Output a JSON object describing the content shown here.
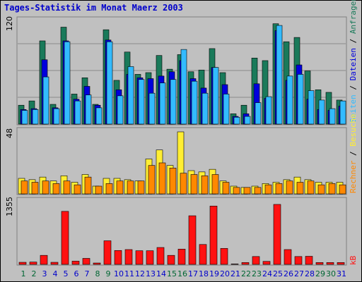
{
  "title": "Tages-Statistik im Monat Maerz 2003",
  "colors": {
    "anfragen": "#1a7a5a",
    "dateien": "#0000dd",
    "seiten": "#33bbff",
    "besuche": "#ffee33",
    "rechner": "#ff8800",
    "kb": "#ff1111",
    "title": "#0000cc",
    "weekday_label": "#0000cc",
    "weekend_label": "#006633"
  },
  "legend": {
    "top": {
      "anfragen": "Anfragen",
      "sep1": " / ",
      "dateien": "Dateien",
      "sep2": " / ",
      "seiten": "Seiten"
    },
    "middle": {
      "besuche": "Besuche",
      "sep": " / ",
      "rechner": "Rechner"
    },
    "bottom": {
      "kb": "kB"
    }
  },
  "chart_data": [
    {
      "type": "bar",
      "title": "Tages-Statistik im Monat Maerz 2003",
      "x": [
        1,
        2,
        3,
        4,
        5,
        6,
        7,
        8,
        9,
        10,
        11,
        12,
        13,
        14,
        15,
        16,
        17,
        18,
        19,
        20,
        21,
        22,
        23,
        24,
        25,
        26,
        27,
        28,
        29,
        30,
        31
      ],
      "weekend_days": [
        1,
        2,
        8,
        9,
        15,
        16,
        22,
        23,
        29,
        30
      ],
      "ymax": 120,
      "ytick_label": "120",
      "series": [
        {
          "name": "Anfragen",
          "values": [
            22,
            27,
            97,
            23,
            113,
            35,
            54,
            23,
            110,
            51,
            84,
            58,
            60,
            80,
            64,
            81,
            61,
            63,
            88,
            60,
            12,
            22,
            77,
            74,
            117,
            96,
            101,
            62,
            40,
            37,
            28
          ]
        },
        {
          "name": "Dateien",
          "values": [
            17,
            18,
            75,
            19,
            97,
            29,
            44,
            22,
            98,
            40,
            58,
            54,
            53,
            56,
            61,
            74,
            53,
            42,
            66,
            46,
            9,
            12,
            47,
            30,
            109,
            51,
            69,
            29,
            17,
            16,
            21
          ]
        },
        {
          "name": "Seiten",
          "values": [
            16,
            17,
            55,
            18,
            96,
            27,
            34,
            19,
            96,
            33,
            67,
            52,
            36,
            48,
            52,
            87,
            50,
            36,
            66,
            35,
            8,
            9,
            25,
            32,
            115,
            56,
            58,
            39,
            28,
            18,
            27
          ]
        }
      ]
    },
    {
      "type": "bar",
      "x": [
        1,
        2,
        3,
        4,
        5,
        6,
        7,
        8,
        9,
        10,
        11,
        12,
        13,
        14,
        15,
        16,
        17,
        18,
        19,
        20,
        21,
        22,
        23,
        24,
        25,
        26,
        27,
        28,
        29,
        30,
        31
      ],
      "ymax": 48,
      "ytick_label": "48",
      "series": [
        {
          "name": "Besuche",
          "values": [
            12,
            11,
            13,
            10,
            14,
            9,
            15,
            6,
            12,
            12,
            11,
            10,
            27,
            34,
            22,
            48,
            18,
            17,
            19,
            10,
            6,
            5,
            6,
            8,
            9,
            11,
            13,
            11,
            9,
            9,
            9
          ]
        },
        {
          "name": "Rechner",
          "values": [
            10,
            9,
            10,
            8,
            10,
            7,
            13,
            6,
            8,
            10,
            10,
            10,
            22,
            24,
            20,
            16,
            15,
            14,
            15,
            9,
            5,
            5,
            5,
            7,
            8,
            10,
            9,
            10,
            7,
            8,
            7
          ]
        }
      ]
    },
    {
      "type": "bar",
      "x": [
        1,
        2,
        3,
        4,
        5,
        6,
        7,
        8,
        9,
        10,
        11,
        12,
        13,
        14,
        15,
        16,
        17,
        18,
        19,
        20,
        21,
        22,
        23,
        24,
        25,
        26,
        27,
        28,
        29,
        30,
        31
      ],
      "ymax": 1355,
      "ytick_label": "1355",
      "series": [
        {
          "name": "kB",
          "values": [
            45,
            50,
            195,
            45,
            1145,
            70,
            130,
            30,
            510,
            300,
            320,
            295,
            295,
            365,
            195,
            330,
            1050,
            430,
            1260,
            345,
            10,
            40,
            170,
            65,
            1295,
            320,
            170,
            175,
            40,
            40,
            40
          ]
        }
      ]
    }
  ]
}
